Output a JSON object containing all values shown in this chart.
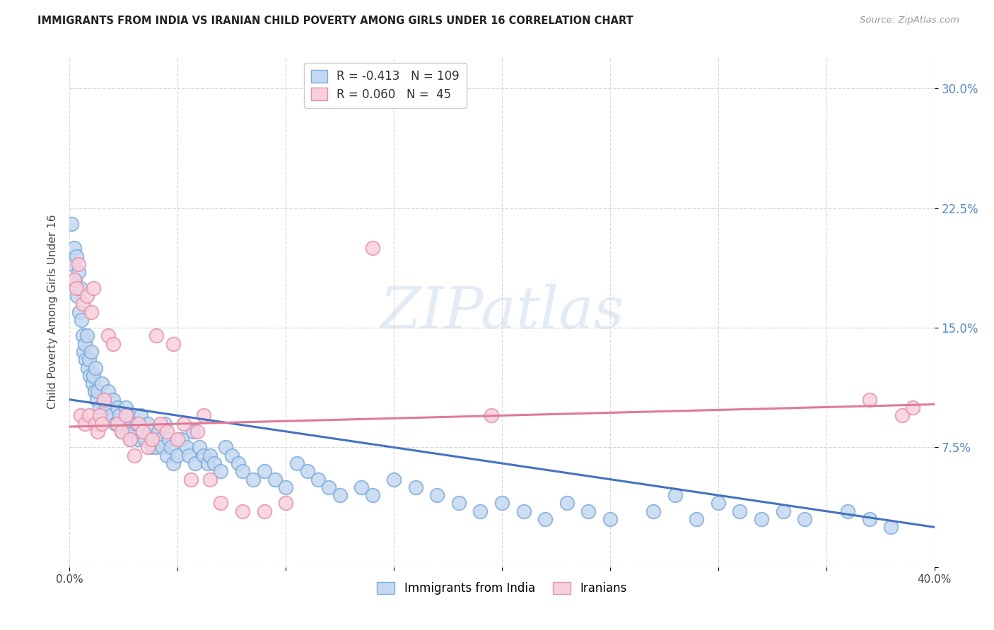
{
  "title": "IMMIGRANTS FROM INDIA VS IRANIAN CHILD POVERTY AMONG GIRLS UNDER 16 CORRELATION CHART",
  "source": "Source: ZipAtlas.com",
  "ylabel": "Child Poverty Among Girls Under 16",
  "xlim": [
    0.0,
    40.0
  ],
  "ylim": [
    0.0,
    32.0
  ],
  "yticks": [
    0.0,
    7.5,
    15.0,
    22.5,
    30.0
  ],
  "ytick_labels": [
    "",
    "7.5%",
    "15.0%",
    "22.5%",
    "30.0%"
  ],
  "india_color": "#c5d8f0",
  "india_edge_color": "#7aacdd",
  "iran_color": "#f8d0dc",
  "iran_edge_color": "#e890aa",
  "india_line_color": "#4472c4",
  "iran_line_color": "#e07a96",
  "legend_india_r": "-0.413",
  "legend_india_n": "109",
  "legend_iran_r": "0.060",
  "legend_iran_n": "45",
  "india_line_x0": 0.0,
  "india_line_y0": 10.5,
  "india_line_x1": 40.0,
  "india_line_y1": 2.5,
  "iran_line_x0": 0.0,
  "iran_line_y0": 8.8,
  "iran_line_x1": 40.0,
  "iran_line_y1": 10.2,
  "india_scatter_x": [
    0.1,
    0.15,
    0.2,
    0.25,
    0.3,
    0.35,
    0.4,
    0.45,
    0.5,
    0.55,
    0.6,
    0.65,
    0.7,
    0.75,
    0.8,
    0.85,
    0.9,
    0.95,
    1.0,
    1.05,
    1.1,
    1.15,
    1.2,
    1.25,
    1.3,
    1.4,
    1.5,
    1.6,
    1.7,
    1.8,
    1.9,
    2.0,
    2.1,
    2.2,
    2.3,
    2.4,
    2.5,
    2.6,
    2.7,
    2.8,
    2.9,
    3.0,
    3.1,
    3.2,
    3.3,
    3.4,
    3.5,
    3.6,
    3.7,
    3.8,
    3.9,
    4.0,
    4.1,
    4.2,
    4.3,
    4.4,
    4.5,
    4.6,
    4.7,
    4.8,
    5.0,
    5.2,
    5.4,
    5.5,
    5.7,
    5.8,
    6.0,
    6.2,
    6.4,
    6.5,
    6.7,
    7.0,
    7.2,
    7.5,
    7.8,
    8.0,
    8.5,
    9.0,
    9.5,
    10.0,
    10.5,
    11.0,
    11.5,
    12.0,
    12.5,
    13.5,
    14.0,
    15.0,
    16.0,
    17.0,
    18.0,
    19.0,
    20.0,
    21.0,
    22.0,
    23.0,
    24.0,
    25.0,
    27.0,
    28.0,
    29.0,
    30.0,
    31.0,
    32.0,
    33.0,
    34.0,
    36.0,
    37.0,
    38.0
  ],
  "india_scatter_y": [
    21.5,
    19.0,
    20.0,
    18.0,
    19.5,
    17.0,
    18.5,
    16.0,
    17.5,
    15.5,
    14.5,
    13.5,
    14.0,
    13.0,
    14.5,
    12.5,
    13.0,
    12.0,
    13.5,
    11.5,
    12.0,
    11.0,
    12.5,
    10.5,
    11.0,
    10.0,
    11.5,
    10.5,
    10.0,
    11.0,
    9.5,
    10.5,
    9.0,
    10.0,
    9.5,
    8.5,
    9.0,
    10.0,
    9.5,
    8.0,
    9.0,
    8.5,
    9.0,
    8.0,
    9.5,
    8.5,
    8.0,
    9.0,
    8.5,
    7.5,
    8.0,
    7.5,
    8.5,
    8.0,
    7.5,
    9.0,
    7.0,
    8.0,
    7.5,
    6.5,
    7.0,
    8.0,
    7.5,
    7.0,
    8.5,
    6.5,
    7.5,
    7.0,
    6.5,
    7.0,
    6.5,
    6.0,
    7.5,
    7.0,
    6.5,
    6.0,
    5.5,
    6.0,
    5.5,
    5.0,
    6.5,
    6.0,
    5.5,
    5.0,
    4.5,
    5.0,
    4.5,
    5.5,
    5.0,
    4.5,
    4.0,
    3.5,
    4.0,
    3.5,
    3.0,
    4.0,
    3.5,
    3.0,
    3.5,
    4.5,
    3.0,
    4.0,
    3.5,
    3.0,
    3.5,
    3.0,
    3.5,
    3.0,
    2.5
  ],
  "iran_scatter_x": [
    0.2,
    0.3,
    0.4,
    0.5,
    0.6,
    0.7,
    0.8,
    0.9,
    1.0,
    1.1,
    1.2,
    1.3,
    1.4,
    1.5,
    1.6,
    1.8,
    2.0,
    2.2,
    2.4,
    2.6,
    2.8,
    3.0,
    3.2,
    3.4,
    3.6,
    3.8,
    4.0,
    4.2,
    4.5,
    4.8,
    5.0,
    5.3,
    5.6,
    5.9,
    6.2,
    6.5,
    7.0,
    8.0,
    9.0,
    10.0,
    14.0,
    19.5,
    37.0,
    38.5,
    39.0
  ],
  "iran_scatter_y": [
    18.0,
    17.5,
    19.0,
    9.5,
    16.5,
    9.0,
    17.0,
    9.5,
    16.0,
    17.5,
    9.0,
    8.5,
    9.5,
    9.0,
    10.5,
    14.5,
    14.0,
    9.0,
    8.5,
    9.5,
    8.0,
    7.0,
    9.0,
    8.5,
    7.5,
    8.0,
    14.5,
    9.0,
    8.5,
    14.0,
    8.0,
    9.0,
    5.5,
    8.5,
    9.5,
    5.5,
    4.0,
    3.5,
    3.5,
    4.0,
    20.0,
    9.5,
    10.5,
    9.5,
    10.0
  ],
  "watermark_text": "ZIPatlas",
  "background_color": "#ffffff",
  "grid_color": "#d8d8d8"
}
